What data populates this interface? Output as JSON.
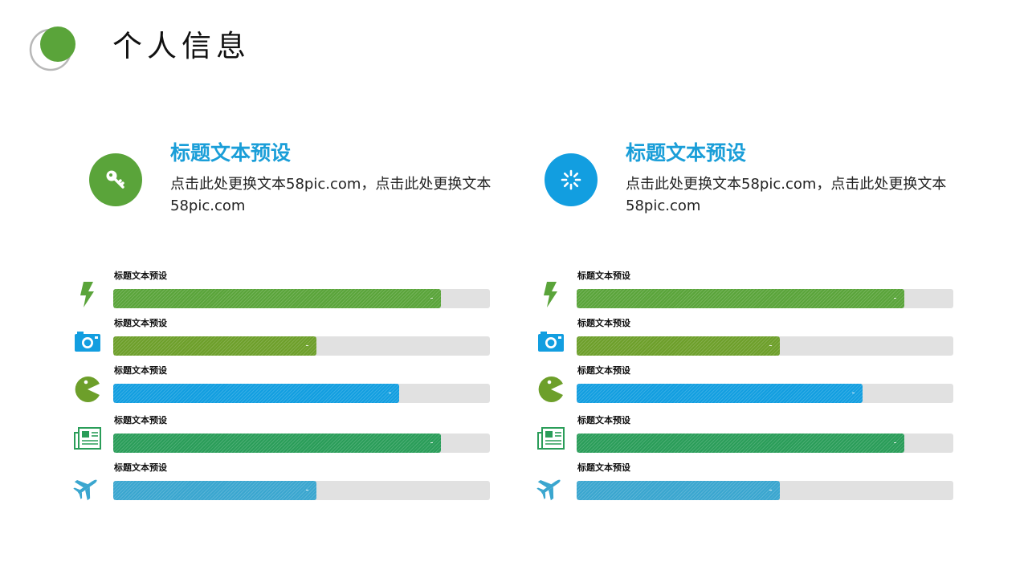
{
  "colors": {
    "green": "#5aa43a",
    "olive": "#6d9f2a",
    "blue": "#129ee0",
    "teal": "#2a9d59",
    "sky": "#3aa6cf",
    "track": "#e1e1e1",
    "head_blue": "#1a9ed8"
  },
  "page": {
    "title": "个人信息"
  },
  "info_cards": [
    {
      "icon": "key-icon",
      "color": "#5aa43a",
      "title": "标题文本预设",
      "body": "点击此处更换文本58pic.com，点击此处更换文本58pic.com"
    },
    {
      "icon": "loading-spinner-icon",
      "color": "#129ee0",
      "title": "标题文本预设",
      "body": "点击此处更换文本58pic.com，点击此处更换文本58pic.com"
    }
  ],
  "skill_columns": [
    {
      "items": [
        {
          "icon": "lightning-icon",
          "label": "标题文本预设",
          "value": 0.87,
          "color": "#5aa43a"
        },
        {
          "icon": "camera-icon",
          "label": "标题文本预设",
          "value": 0.54,
          "color": "#6d9f2a"
        },
        {
          "icon": "pacman-icon",
          "label": "标题文本预设",
          "value": 0.76,
          "color": "#129ee0"
        },
        {
          "icon": "newspaper-icon",
          "label": "标题文本预设",
          "value": 0.87,
          "color": "#2a9d59"
        },
        {
          "icon": "airplane-icon",
          "label": "标题文本预设",
          "value": 0.54,
          "color": "#3aa6cf"
        }
      ]
    },
    {
      "items": [
        {
          "icon": "lightning-icon",
          "label": "标题文本预设",
          "value": 0.87,
          "color": "#5aa43a"
        },
        {
          "icon": "camera-icon",
          "label": "标题文本预设",
          "value": 0.54,
          "color": "#6d9f2a"
        },
        {
          "icon": "pacman-icon",
          "label": "标题文本预设",
          "value": 0.76,
          "color": "#129ee0"
        },
        {
          "icon": "newspaper-icon",
          "label": "标题文本预设",
          "value": 0.87,
          "color": "#2a9d59"
        },
        {
          "icon": "airplane-icon",
          "label": "标题文本预设",
          "value": 0.54,
          "color": "#3aa6cf"
        }
      ]
    }
  ]
}
